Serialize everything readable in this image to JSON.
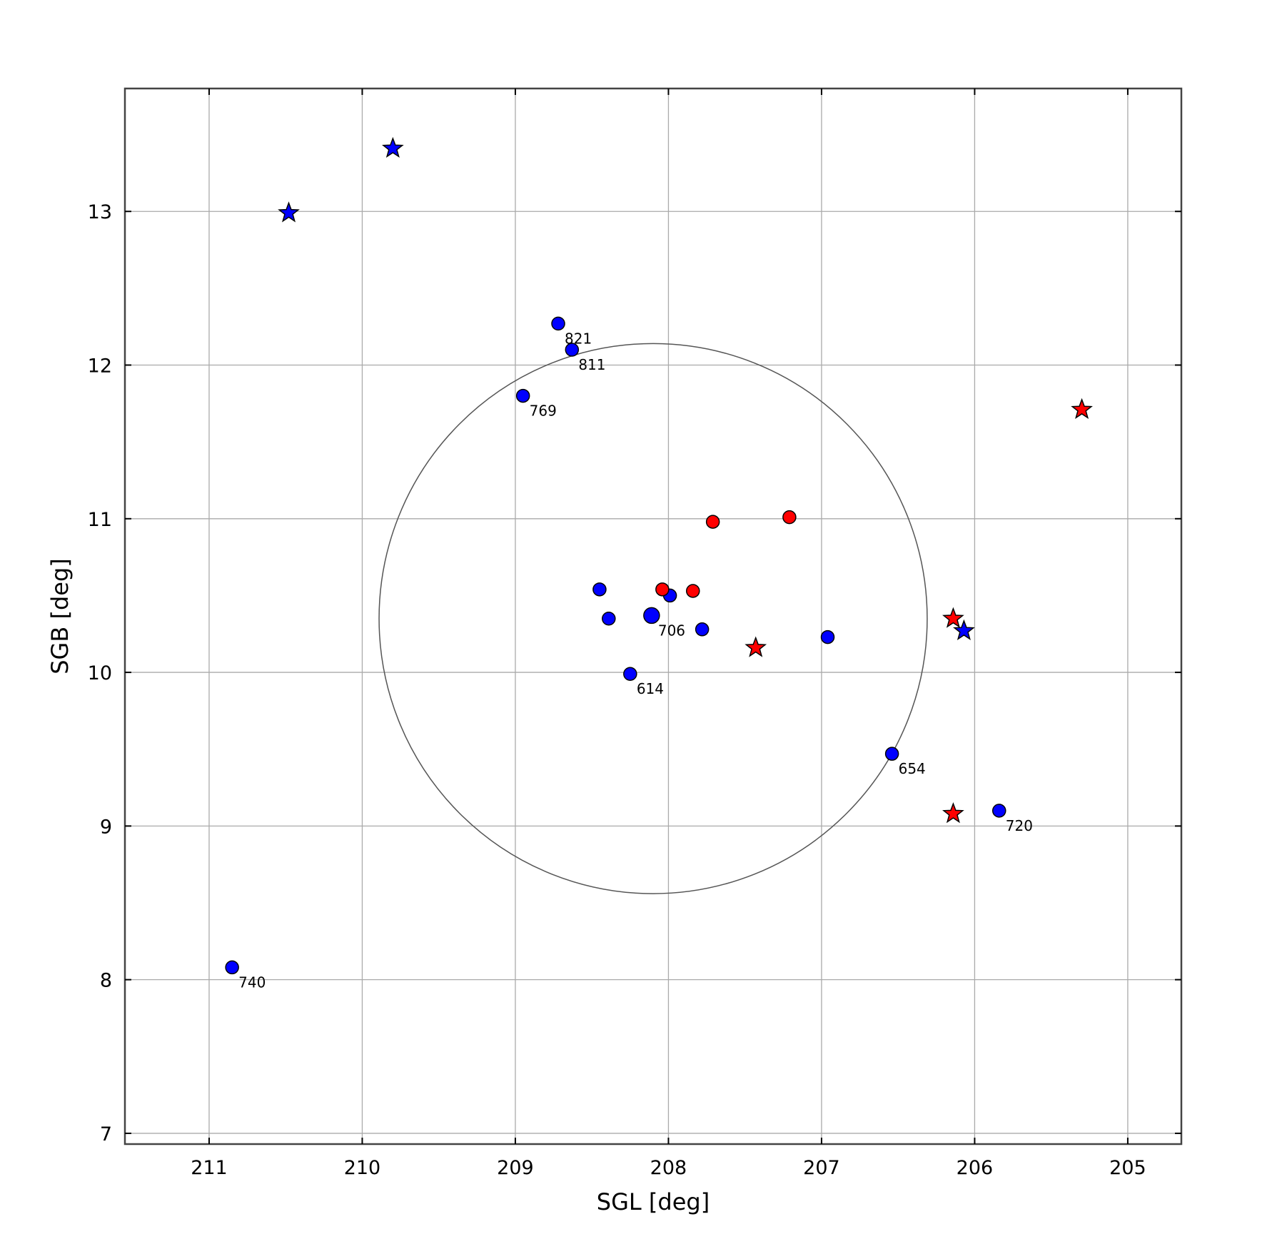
{
  "chart_data": {
    "type": "scatter",
    "title": "",
    "xlabel": "SGL [deg]",
    "ylabel": "SGB [deg]",
    "xlim": [
      211.55,
      204.65
    ],
    "ylim": [
      6.93,
      13.8
    ],
    "x_ticks": [
      211,
      210,
      209,
      208,
      207,
      206,
      205
    ],
    "y_ticks": [
      7,
      8,
      9,
      10,
      11,
      12,
      13
    ],
    "grid": true,
    "colors": {
      "blue": "#0000ff",
      "red": "#ff0000",
      "circle": "#555555",
      "grid": "#aaaaaa"
    },
    "circle": {
      "center_sgl": 208.1,
      "center_sgb": 10.35,
      "radius_deg": 1.79
    },
    "series": [
      {
        "marker": "circle",
        "color": "#0000ff",
        "points": [
          {
            "x": 208.72,
            "y": 12.27,
            "label": "821"
          },
          {
            "x": 208.63,
            "y": 12.1,
            "label": "811"
          },
          {
            "x": 208.95,
            "y": 11.8,
            "label": "769"
          },
          {
            "x": 208.45,
            "y": 10.54,
            "label": ""
          },
          {
            "x": 208.39,
            "y": 10.35,
            "label": ""
          },
          {
            "x": 208.11,
            "y": 10.37,
            "label": "706",
            "size": "large"
          },
          {
            "x": 207.99,
            "y": 10.5,
            "label": ""
          },
          {
            "x": 207.78,
            "y": 10.28,
            "label": ""
          },
          {
            "x": 208.25,
            "y": 9.99,
            "label": "614"
          },
          {
            "x": 206.96,
            "y": 10.23,
            "label": ""
          },
          {
            "x": 206.54,
            "y": 9.47,
            "label": "654"
          },
          {
            "x": 205.84,
            "y": 9.1,
            "label": "720"
          },
          {
            "x": 210.85,
            "y": 8.08,
            "label": "740"
          }
        ]
      },
      {
        "marker": "circle",
        "color": "#ff0000",
        "points": [
          {
            "x": 208.04,
            "y": 10.54,
            "label": ""
          },
          {
            "x": 207.84,
            "y": 10.53,
            "label": ""
          },
          {
            "x": 207.71,
            "y": 10.98,
            "label": ""
          },
          {
            "x": 207.21,
            "y": 11.01,
            "label": ""
          }
        ]
      },
      {
        "marker": "star",
        "color": "#0000ff",
        "points": [
          {
            "x": 209.8,
            "y": 13.41,
            "label": ""
          },
          {
            "x": 210.48,
            "y": 12.99,
            "label": ""
          },
          {
            "x": 206.07,
            "y": 10.27,
            "label": ""
          }
        ]
      },
      {
        "marker": "star",
        "color": "#ff0000",
        "points": [
          {
            "x": 205.3,
            "y": 11.71,
            "label": ""
          },
          {
            "x": 206.14,
            "y": 10.35,
            "label": ""
          },
          {
            "x": 207.43,
            "y": 10.16,
            "label": ""
          },
          {
            "x": 206.14,
            "y": 9.08,
            "label": ""
          }
        ]
      }
    ]
  }
}
